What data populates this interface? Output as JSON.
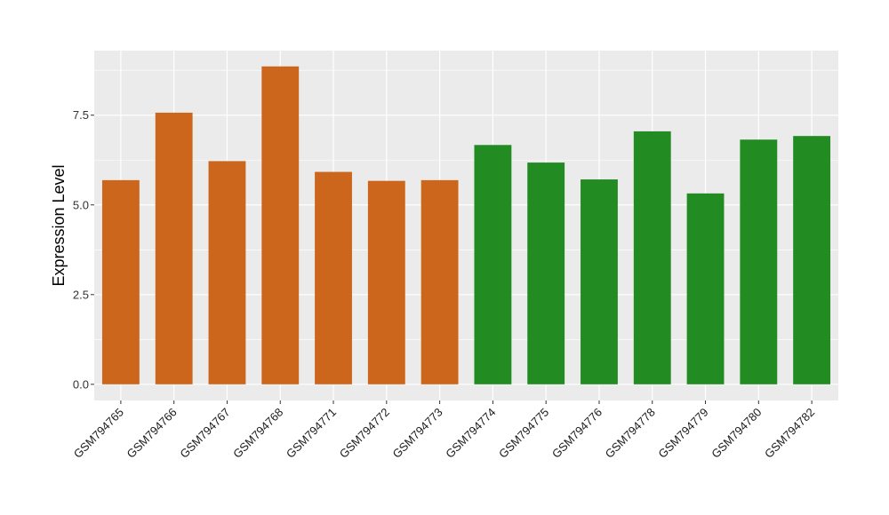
{
  "chart_data": {
    "type": "bar",
    "title": "",
    "xlabel": "",
    "ylabel": "Expression Level",
    "ylim": [
      -0.45,
      9.3
    ],
    "yticks": [
      0.0,
      2.5,
      5.0,
      7.5
    ],
    "ytick_labels": [
      "0.0",
      "2.5",
      "5.0",
      "7.5"
    ],
    "grid": true,
    "legend": "none",
    "categories": [
      "GSM794765",
      "GSM794766",
      "GSM794767",
      "GSM794768",
      "GSM794771",
      "GSM794772",
      "GSM794773",
      "GSM794774",
      "GSM794775",
      "GSM794776",
      "GSM794778",
      "GSM794779",
      "GSM794780",
      "GSM794782"
    ],
    "values": [
      5.69,
      7.57,
      6.22,
      8.86,
      5.92,
      5.67,
      5.69,
      6.67,
      6.18,
      5.71,
      7.05,
      5.32,
      6.82,
      6.92
    ],
    "bar_colors": [
      "#cd661d",
      "#cd661d",
      "#cd661d",
      "#cd661d",
      "#cd661d",
      "#cd661d",
      "#cd661d",
      "#228b22",
      "#228b22",
      "#228b22",
      "#228b22",
      "#228b22",
      "#228b22",
      "#228b22"
    ],
    "panel_background": "#ebebeb",
    "gridline_color": "#ffffff"
  }
}
